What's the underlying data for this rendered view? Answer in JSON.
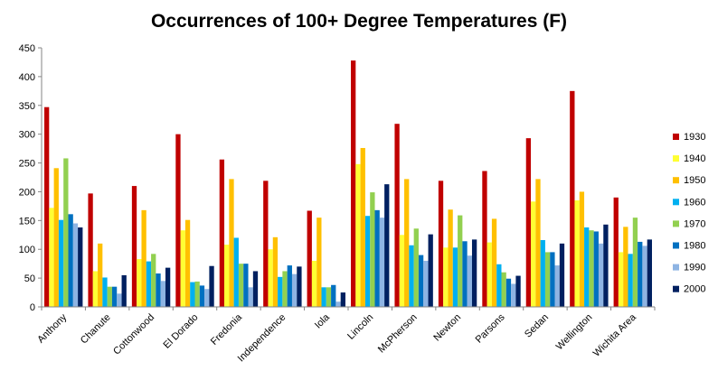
{
  "chart_data": {
    "type": "bar",
    "title": "Occurrences of 100+ Degree Temperatures (F)",
    "xlabel": "",
    "ylabel": "",
    "ylim": [
      0,
      450
    ],
    "yticks": [
      "0",
      "50",
      "100",
      "150",
      "200",
      "250",
      "300",
      "350",
      "400",
      "450"
    ],
    "grid": false,
    "legend_position": "right",
    "categories": [
      "Anthony",
      "Chanute",
      "Cottonwood",
      "El Dorado",
      "Fredonia",
      "Independence",
      "Iola",
      "Lincoln",
      "McPherson",
      "Newton",
      "Parsons",
      "Sedan",
      "Wellington",
      "Wichita Area"
    ],
    "series": [
      {
        "name": "1930",
        "color": "#c00000",
        "values": [
          347,
          197,
          210,
          300,
          256,
          219,
          167,
          428,
          318,
          219,
          236,
          293,
          375,
          190
        ]
      },
      {
        "name": "1940",
        "color": "#ffff33",
        "values": [
          172,
          62,
          83,
          133,
          108,
          100,
          80,
          248,
          125,
          103,
          112,
          183,
          185,
          95
        ]
      },
      {
        "name": "1950",
        "color": "#ffc000",
        "values": [
          241,
          110,
          168,
          151,
          222,
          121,
          155,
          276,
          222,
          169,
          153,
          222,
          200,
          139
        ]
      },
      {
        "name": "1960",
        "color": "#00b0f0",
        "values": [
          151,
          51,
          79,
          43,
          120,
          52,
          34,
          158,
          107,
          103,
          74,
          116,
          138,
          92
        ]
      },
      {
        "name": "1970",
        "color": "#92d050",
        "values": [
          258,
          35,
          92,
          44,
          75,
          62,
          34,
          199,
          136,
          159,
          60,
          95,
          133,
          155
        ]
      },
      {
        "name": "1980",
        "color": "#0070c0",
        "values": [
          161,
          35,
          58,
          37,
          75,
          72,
          38,
          168,
          90,
          114,
          49,
          95,
          131,
          113
        ]
      },
      {
        "name": "1990",
        "color": "#8eb4e3",
        "values": [
          145,
          23,
          45,
          31,
          34,
          57,
          9,
          155,
          80,
          89,
          40,
          72,
          110,
          106
        ]
      },
      {
        "name": "2000",
        "color": "#002060",
        "values": [
          138,
          55,
          68,
          71,
          62,
          70,
          25,
          213,
          126,
          117,
          54,
          110,
          143,
          117
        ]
      }
    ]
  }
}
